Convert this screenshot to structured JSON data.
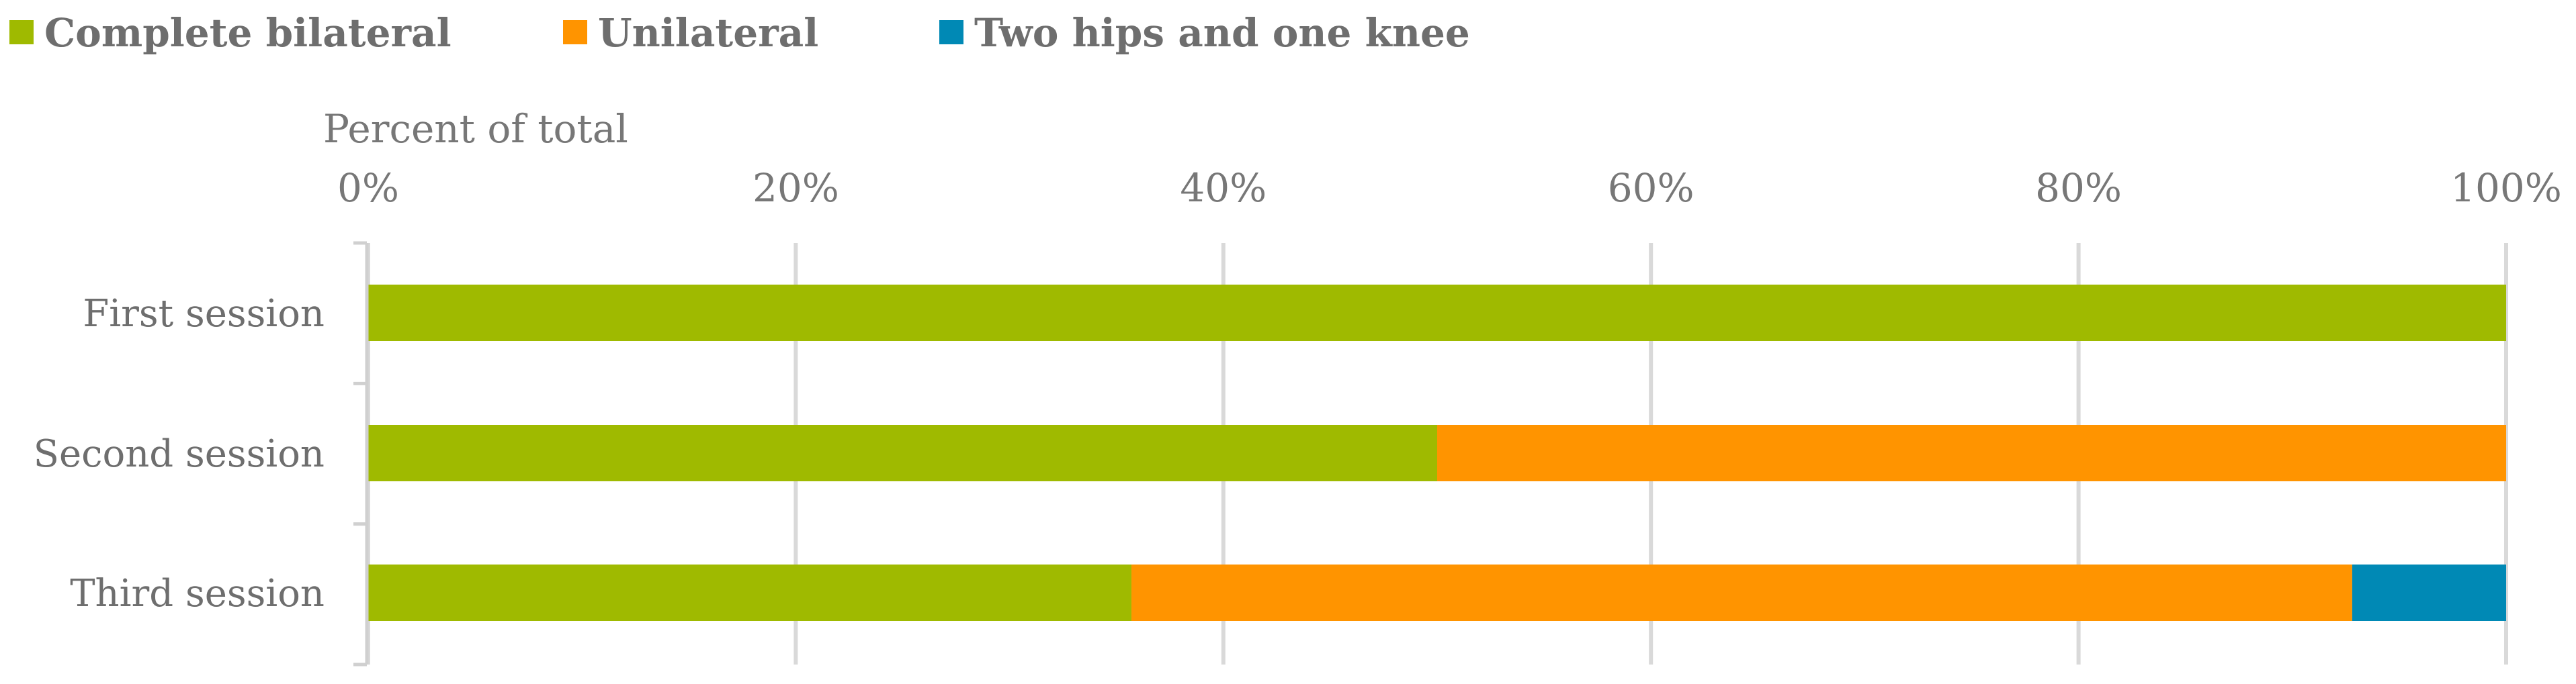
{
  "chart_data": {
    "type": "bar",
    "orientation": "horizontal",
    "stacked": true,
    "percent_stacked": true,
    "title": "",
    "xlabel": "Percent of total",
    "ylabel": "",
    "xlim": [
      0,
      100
    ],
    "x_ticks": [
      "0%",
      "20%",
      "40%",
      "60%",
      "80%",
      "100%"
    ],
    "x_axis_position": "top",
    "categories": [
      "First session",
      "Second session",
      "Third session"
    ],
    "series": [
      {
        "name": "Complete bilateral",
        "color": "#9fba00",
        "values": [
          100,
          50,
          35.7
        ]
      },
      {
        "name": "Unilateral",
        "color": "#ff9400",
        "values": [
          0,
          50,
          57.1
        ]
      },
      {
        "name": "Two hips and one knee",
        "color": "#0089b5",
        "values": [
          0,
          0,
          7.2
        ]
      }
    ],
    "grid": true,
    "grid_color": "#d9d9d9",
    "legend_position": "top-left"
  }
}
